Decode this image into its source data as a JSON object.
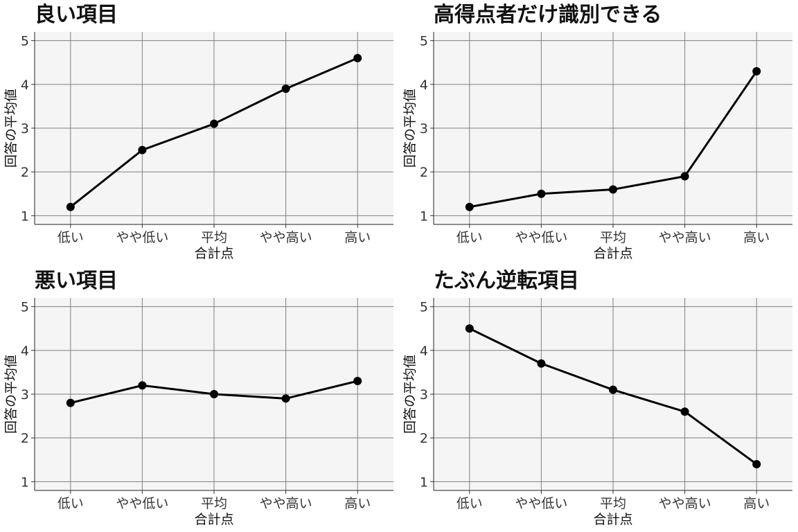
{
  "chart_data": [
    {
      "type": "line",
      "title": "良い項目",
      "categories": [
        "低い",
        "やや低い",
        "平均",
        "やや高い",
        "高い"
      ],
      "values": [
        1.2,
        2.5,
        3.1,
        3.9,
        4.6
      ],
      "xlabel": "合計点",
      "ylabel": "回答の平均値",
      "yticks": [
        "1",
        "2",
        "3",
        "4",
        "5"
      ],
      "ylim": [
        0.8,
        5.2
      ],
      "grid": true,
      "legend": "none",
      "colors": {
        "panel_bg": "#f5f5f5",
        "grid": "#7f7f7f",
        "line": "#000000",
        "marker": "#000000"
      }
    },
    {
      "type": "line",
      "title": "高得点者だけ識別できる",
      "categories": [
        "低い",
        "やや低い",
        "平均",
        "やや高い",
        "高い"
      ],
      "values": [
        1.2,
        1.5,
        1.6,
        1.9,
        4.3
      ],
      "xlabel": "合計点",
      "ylabel": "回答の平均値",
      "yticks": [
        "1",
        "2",
        "3",
        "4",
        "5"
      ],
      "ylim": [
        0.8,
        5.2
      ],
      "grid": true,
      "legend": "none",
      "colors": {
        "panel_bg": "#f5f5f5",
        "grid": "#7f7f7f",
        "line": "#000000",
        "marker": "#000000"
      }
    },
    {
      "type": "line",
      "title": "悪い項目",
      "categories": [
        "低い",
        "やや低い",
        "平均",
        "やや高い",
        "高い"
      ],
      "values": [
        2.8,
        3.2,
        3.0,
        2.9,
        3.3
      ],
      "xlabel": "合計点",
      "ylabel": "回答の平均値",
      "yticks": [
        "1",
        "2",
        "3",
        "4",
        "5"
      ],
      "ylim": [
        0.8,
        5.2
      ],
      "grid": true,
      "legend": "none",
      "colors": {
        "panel_bg": "#f5f5f5",
        "grid": "#7f7f7f",
        "line": "#000000",
        "marker": "#000000"
      }
    },
    {
      "type": "line",
      "title": "たぶん逆転項目",
      "categories": [
        "低い",
        "やや低い",
        "平均",
        "やや高い",
        "高い"
      ],
      "values": [
        4.5,
        3.7,
        3.1,
        2.6,
        1.4
      ],
      "xlabel": "合計点",
      "ylabel": "回答の平均値",
      "yticks": [
        "1",
        "2",
        "3",
        "4",
        "5"
      ],
      "ylim": [
        0.8,
        5.2
      ],
      "grid": true,
      "legend": "none",
      "colors": {
        "panel_bg": "#f5f5f5",
        "grid": "#7f7f7f",
        "line": "#000000",
        "marker": "#000000"
      }
    }
  ]
}
